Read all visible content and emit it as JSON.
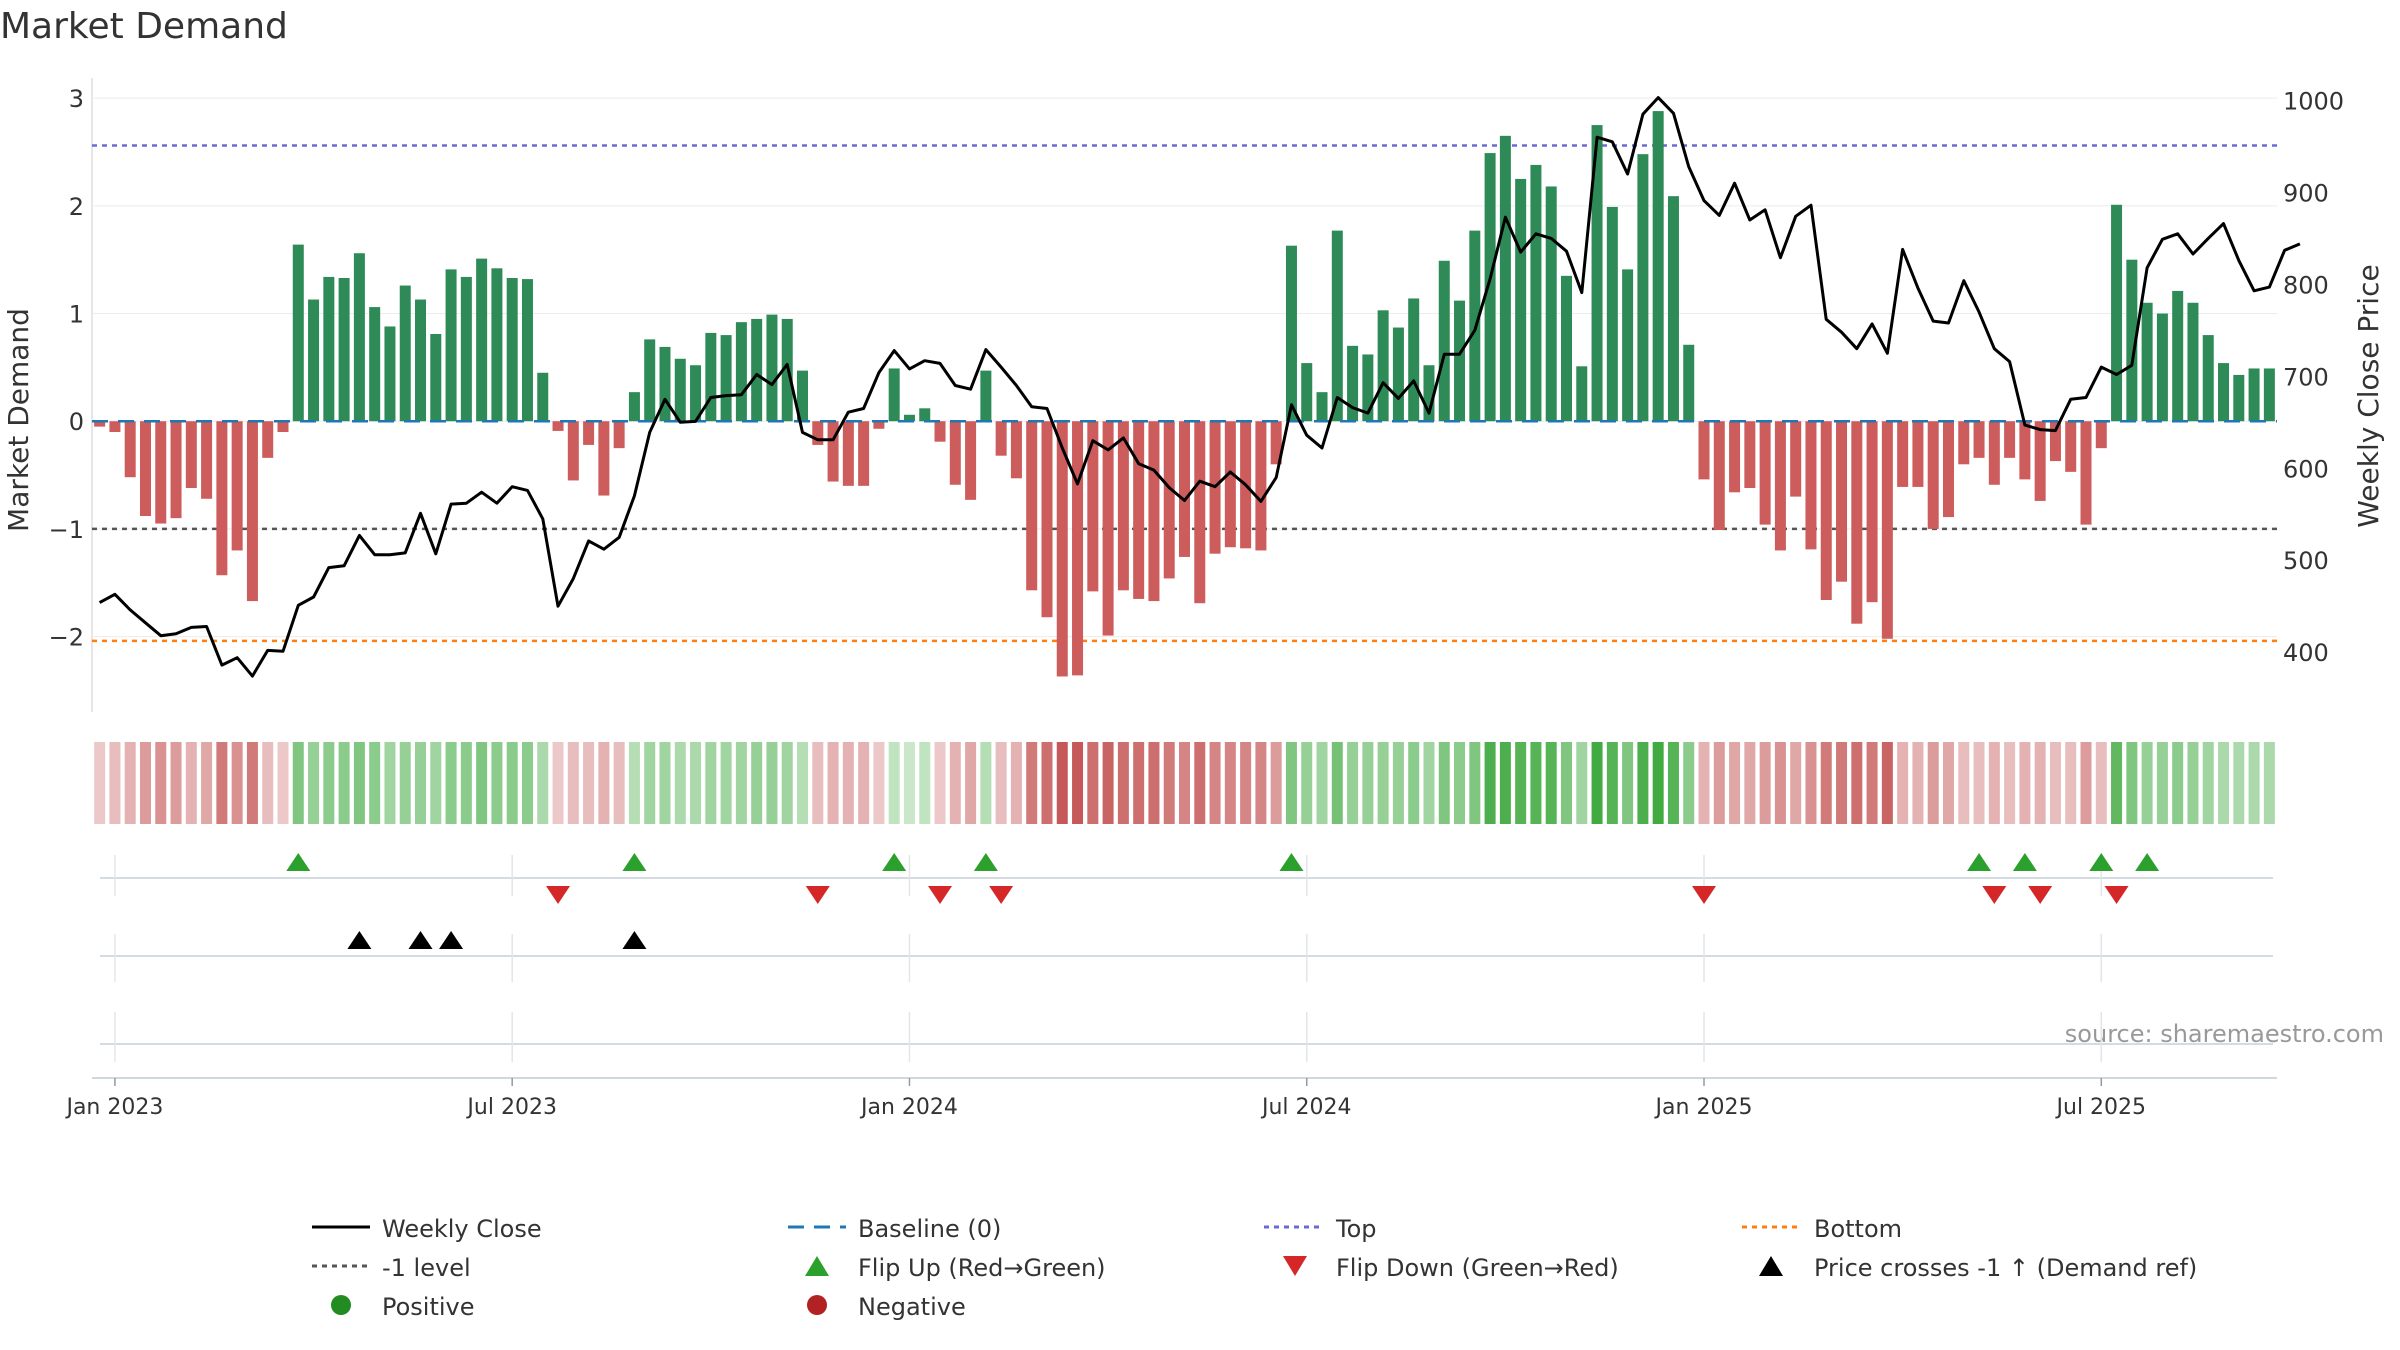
{
  "chart_data": {
    "type": "bar",
    "title": "Market Demand",
    "ylabel_left": "Market Demand",
    "ylabel_right": "Weekly Close Price",
    "source": "source: sharemaestro.com",
    "left_ylim": [
      -2.7,
      3.15
    ],
    "right_ylim": [
      335,
      1020
    ],
    "left_ticks": [
      3,
      2,
      1,
      0,
      -1,
      -2
    ],
    "left_tick_labels": [
      "3",
      "2",
      "1",
      "0",
      "−1",
      "−2"
    ],
    "right_ticks": [
      1000,
      900,
      800,
      700,
      600,
      500,
      400
    ],
    "right_tick_labels": [
      "1000",
      "900",
      "800",
      "700",
      "600",
      "500",
      "400"
    ],
    "x_tick_weeks": [
      1,
      27,
      53,
      79,
      105,
      131
    ],
    "x_tick_labels": [
      "Jan 2023",
      "Jul 2023",
      "Jan 2024",
      "Jul 2024",
      "Jan 2025",
      "Jul 2025"
    ],
    "reference_lines": {
      "top": 2.56,
      "bottom": -2.04,
      "minus_one": -1,
      "baseline": 0
    },
    "demand": [
      -0.05,
      -0.1,
      -0.52,
      -0.88,
      -0.95,
      -0.9,
      -0.62,
      -0.72,
      -1.43,
      -1.2,
      -1.67,
      -0.34,
      -0.1,
      1.64,
      1.13,
      1.34,
      1.33,
      1.56,
      1.06,
      0.88,
      1.26,
      1.13,
      0.81,
      1.41,
      1.34,
      1.51,
      1.42,
      1.33,
      1.32,
      0.45,
      -0.09,
      -0.55,
      -0.22,
      -0.69,
      -0.25,
      0.27,
      0.76,
      0.69,
      0.58,
      0.52,
      0.82,
      0.8,
      0.92,
      0.95,
      0.99,
      0.95,
      0.47,
      -0.22,
      -0.56,
      -0.6,
      -0.6,
      -0.07,
      0.49,
      0.06,
      0.12,
      -0.19,
      -0.59,
      -0.73,
      0.47,
      -0.32,
      -0.53,
      -1.57,
      -1.82,
      -2.37,
      -2.36,
      -1.58,
      -1.99,
      -1.57,
      -1.65,
      -1.67,
      -1.46,
      -1.26,
      -1.69,
      -1.23,
      -1.17,
      -1.18,
      -1.2,
      -0.4,
      1.63,
      0.54,
      0.27,
      1.77,
      0.7,
      0.62,
      1.03,
      0.87,
      1.14,
      0.52,
      1.49,
      1.12,
      1.77,
      2.49,
      2.65,
      2.25,
      2.38,
      2.18,
      1.35,
      0.51,
      2.75,
      1.99,
      1.41,
      2.48,
      2.88,
      2.09,
      0.71,
      -0.54,
      -1.01,
      -0.66,
      -0.62,
      -0.96,
      -1.2,
      -0.7,
      -1.19,
      -1.66,
      -1.49,
      -1.88,
      -1.68,
      -2.02,
      -0.61,
      -0.61,
      -1.0,
      -0.89,
      -0.4,
      -0.34,
      -0.59,
      -0.34,
      -0.54,
      -0.74,
      -0.37,
      -0.47,
      -0.96,
      -0.25,
      2.01,
      1.5,
      1.1,
      1.0,
      1.21,
      1.1,
      0.8,
      0.54,
      0.43,
      0.49,
      0.49
    ],
    "color_strength": [
      0.25,
      0.3,
      0.35,
      0.45,
      0.5,
      0.45,
      0.35,
      0.4,
      0.6,
      0.5,
      0.6,
      0.3,
      0.25,
      0.6,
      0.5,
      0.55,
      0.55,
      0.6,
      0.55,
      0.45,
      0.5,
      0.5,
      0.45,
      0.55,
      0.55,
      0.6,
      0.55,
      0.55,
      0.55,
      0.4,
      0.25,
      0.3,
      0.3,
      0.35,
      0.3,
      0.35,
      0.45,
      0.45,
      0.4,
      0.4,
      0.45,
      0.45,
      0.45,
      0.5,
      0.5,
      0.45,
      0.35,
      0.3,
      0.35,
      0.35,
      0.35,
      0.25,
      0.3,
      0.25,
      0.3,
      0.25,
      0.35,
      0.4,
      0.35,
      0.3,
      0.35,
      0.6,
      0.65,
      0.75,
      0.75,
      0.65,
      0.7,
      0.65,
      0.65,
      0.65,
      0.6,
      0.55,
      0.65,
      0.55,
      0.55,
      0.55,
      0.55,
      0.45,
      0.6,
      0.5,
      0.45,
      0.65,
      0.5,
      0.5,
      0.5,
      0.5,
      0.55,
      0.45,
      0.6,
      0.55,
      0.6,
      0.85,
      0.85,
      0.8,
      0.8,
      0.8,
      0.6,
      0.45,
      0.9,
      0.8,
      0.6,
      0.85,
      0.9,
      0.8,
      0.55,
      0.35,
      0.45,
      0.4,
      0.4,
      0.45,
      0.5,
      0.4,
      0.5,
      0.6,
      0.6,
      0.65,
      0.6,
      0.7,
      0.35,
      0.35,
      0.45,
      0.4,
      0.3,
      0.3,
      0.35,
      0.3,
      0.35,
      0.35,
      0.3,
      0.3,
      0.45,
      0.3,
      0.75,
      0.6,
      0.5,
      0.5,
      0.55,
      0.5,
      0.45,
      0.4,
      0.4,
      0.4,
      0.4
    ],
    "weekly_close": [
      [
        0,
        454
      ],
      [
        1,
        463
      ],
      [
        2,
        446
      ],
      [
        3,
        432
      ],
      [
        4,
        418
      ],
      [
        5,
        420
      ],
      [
        6,
        427
      ],
      [
        7,
        428
      ],
      [
        8,
        386
      ],
      [
        9,
        394
      ],
      [
        10,
        374
      ],
      [
        11,
        402
      ],
      [
        12,
        401
      ],
      [
        13,
        451
      ],
      [
        14,
        460
      ],
      [
        15,
        492
      ],
      [
        16,
        494
      ],
      [
        17,
        527
      ],
      [
        18,
        506
      ],
      [
        19,
        506
      ],
      [
        20,
        508
      ],
      [
        21,
        551
      ],
      [
        22,
        507
      ],
      [
        23,
        561
      ],
      [
        24,
        562
      ],
      [
        25,
        574
      ],
      [
        26,
        562
      ],
      [
        27,
        580
      ],
      [
        28,
        576
      ],
      [
        29,
        545
      ],
      [
        30,
        450
      ],
      [
        31,
        480
      ],
      [
        32,
        521
      ],
      [
        33,
        512
      ],
      [
        34,
        525
      ],
      [
        35,
        570
      ],
      [
        36,
        639
      ],
      [
        37,
        675
      ],
      [
        38,
        650
      ],
      [
        39,
        651
      ],
      [
        40,
        677
      ],
      [
        41,
        679
      ],
      [
        42,
        680
      ],
      [
        43,
        702
      ],
      [
        44,
        691
      ],
      [
        45,
        713
      ],
      [
        46,
        639
      ],
      [
        47,
        631
      ],
      [
        48,
        631
      ],
      [
        49,
        661
      ],
      [
        50,
        665
      ],
      [
        51,
        704
      ],
      [
        52,
        728
      ],
      [
        53,
        708
      ],
      [
        54,
        717
      ],
      [
        55,
        714
      ],
      [
        56,
        690
      ],
      [
        57,
        686
      ],
      [
        58,
        729
      ],
      [
        59,
        710
      ],
      [
        60,
        690
      ],
      [
        61,
        667
      ],
      [
        62,
        665
      ],
      [
        63,
        622
      ],
      [
        64,
        583
      ],
      [
        65,
        630
      ],
      [
        66,
        620
      ],
      [
        67,
        633
      ],
      [
        68,
        605
      ],
      [
        69,
        598
      ],
      [
        70,
        579
      ],
      [
        71,
        565
      ],
      [
        72,
        586
      ],
      [
        73,
        580
      ],
      [
        74,
        596
      ],
      [
        75,
        582
      ],
      [
        76,
        564
      ],
      [
        77,
        590
      ],
      [
        78,
        669
      ],
      [
        79,
        636
      ],
      [
        80,
        622
      ],
      [
        81,
        677
      ],
      [
        82,
        666
      ],
      [
        83,
        660
      ],
      [
        84,
        693
      ],
      [
        85,
        676
      ],
      [
        86,
        695
      ],
      [
        87,
        660
      ],
      [
        88,
        724
      ],
      [
        89,
        724
      ],
      [
        90,
        750
      ],
      [
        91,
        806
      ],
      [
        92,
        873
      ],
      [
        93,
        835
      ],
      [
        94,
        855
      ],
      [
        95,
        850
      ],
      [
        96,
        836
      ],
      [
        97,
        791
      ],
      [
        98,
        960
      ],
      [
        99,
        955
      ],
      [
        100,
        920
      ],
      [
        101,
        985
      ],
      [
        102,
        1003
      ],
      [
        103,
        986
      ],
      [
        104,
        928
      ],
      [
        105,
        891
      ],
      [
        106,
        875
      ],
      [
        107,
        910
      ],
      [
        108,
        870
      ],
      [
        109,
        881
      ],
      [
        110,
        829
      ],
      [
        111,
        874
      ],
      [
        112,
        886
      ],
      [
        113,
        762
      ],
      [
        114,
        748
      ],
      [
        115,
        730
      ],
      [
        116,
        757
      ],
      [
        117,
        725
      ],
      [
        118,
        838
      ],
      [
        119,
        796
      ],
      [
        120,
        760
      ],
      [
        121,
        758
      ],
      [
        122,
        804
      ],
      [
        123,
        770
      ],
      [
        124,
        730
      ],
      [
        125,
        716
      ],
      [
        126,
        647
      ],
      [
        127,
        642
      ],
      [
        128,
        641
      ],
      [
        129,
        675
      ],
      [
        130,
        677
      ],
      [
        131,
        710
      ],
      [
        132,
        702
      ],
      [
        133,
        712
      ],
      [
        134,
        818
      ],
      [
        135,
        849
      ],
      [
        136,
        855
      ],
      [
        137,
        833
      ],
      [
        138,
        850
      ],
      [
        139,
        866
      ],
      [
        140,
        826
      ],
      [
        141,
        793
      ],
      [
        142,
        797
      ],
      [
        143,
        837
      ],
      [
        144,
        844
      ]
    ],
    "flip_up": [
      13,
      35,
      52,
      58,
      78,
      123,
      126,
      131,
      134
    ],
    "flip_down": [
      30,
      47,
      55,
      59,
      105,
      124,
      127,
      132
    ],
    "price_cross": [
      17,
      21,
      23,
      35
    ],
    "legend": [
      "Weekly Close",
      "Baseline (0)",
      "Top",
      "Bottom",
      "-1 level",
      "Flip Up (Red→Green)",
      "Flip Down (Green→Red)",
      "Price crosses -1 ↑ (Demand ref)",
      "Positive",
      "Negative"
    ],
    "colors": {
      "positive_bar": "#2e8b57",
      "negative_bar": "#cd5c5c",
      "flip_up": "#2ca02c",
      "flip_down": "#d62728",
      "top_line": "#6a6ad6",
      "bottom_line": "#ff7f0e",
      "baseline": "#1f77b4",
      "minus_one_line": "#555555",
      "price_line": "#000000",
      "positive_dot": "#228b22",
      "negative_dot": "#b22222"
    }
  }
}
